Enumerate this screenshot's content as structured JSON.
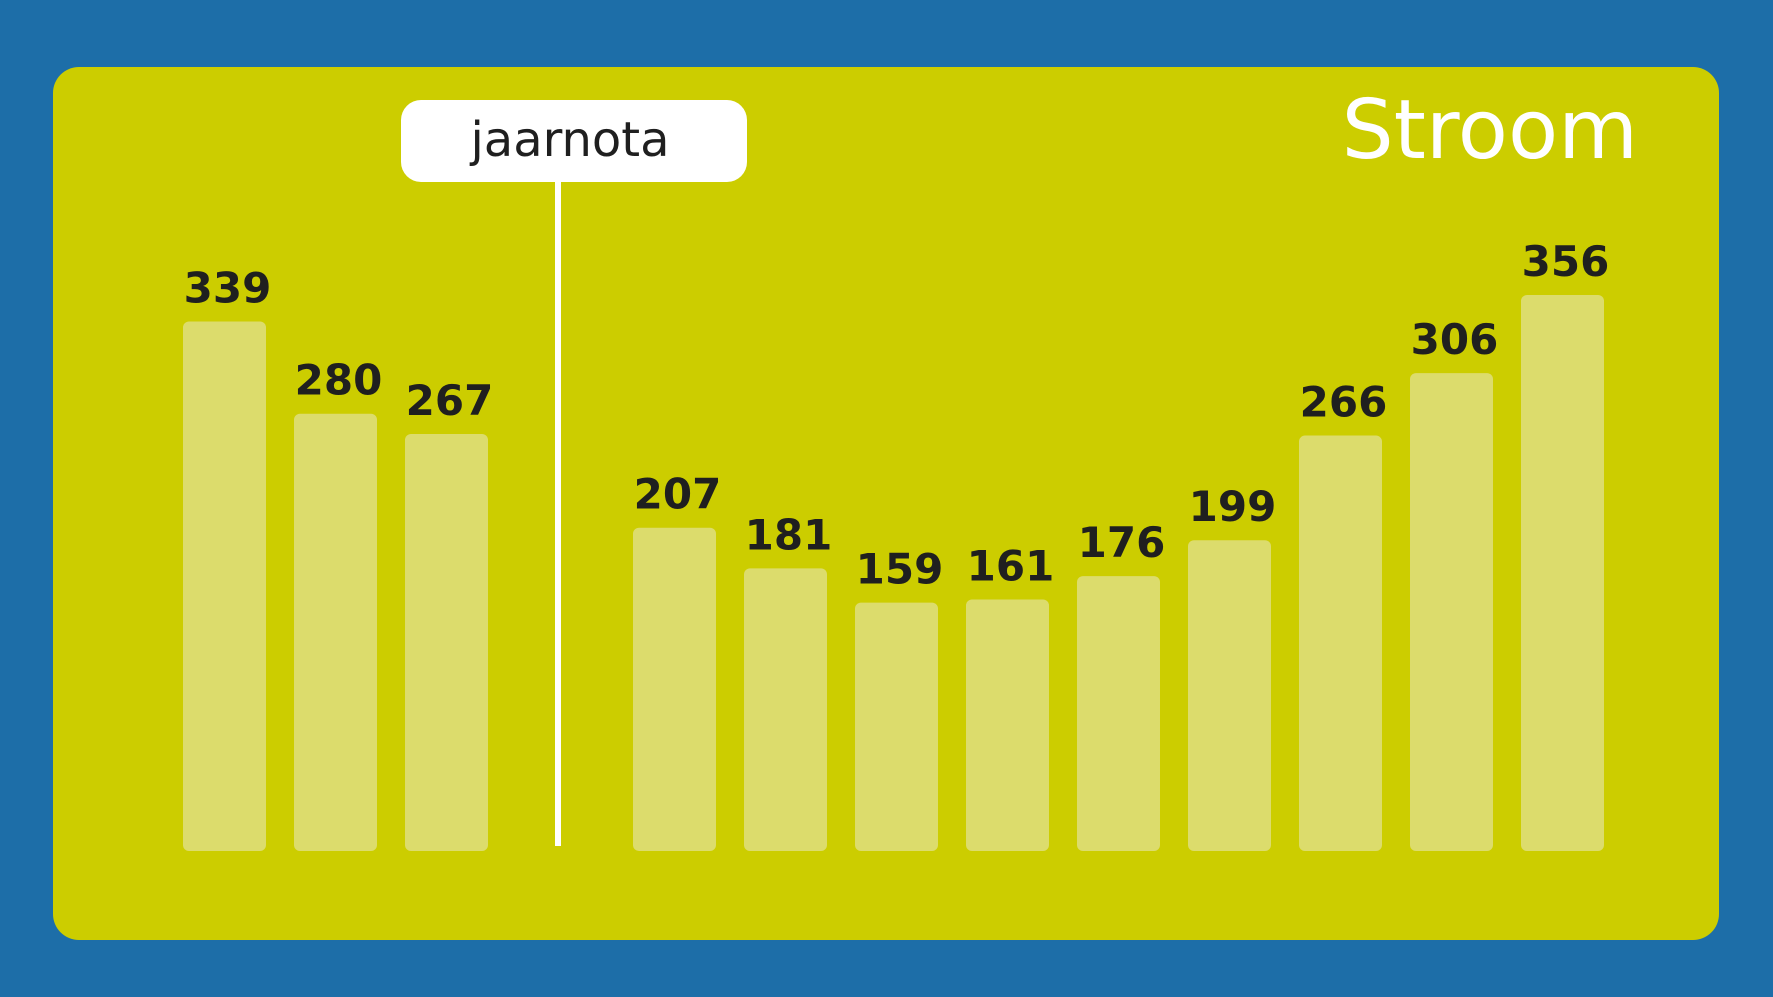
{
  "chart_data": {
    "type": "bar",
    "title": "Stroom",
    "categories": [
      "",
      "",
      "",
      "",
      "",
      "",
      "",
      "",
      "",
      "",
      "",
      ""
    ],
    "values": [
      339,
      280,
      267,
      207,
      181,
      159,
      161,
      176,
      199,
      266,
      306,
      356
    ],
    "annotations": [
      {
        "text": "jaarnota",
        "after_index": 2
      }
    ],
    "ylim": [
      0,
      356
    ],
    "grid": false,
    "legend": "none",
    "colors": {
      "background": "#1d6ea8",
      "panel": "#cccd00",
      "bar": "#dcdc6c",
      "label": "#1f1f1f",
      "title": "#ffffff",
      "marker": "#ffffff"
    }
  }
}
